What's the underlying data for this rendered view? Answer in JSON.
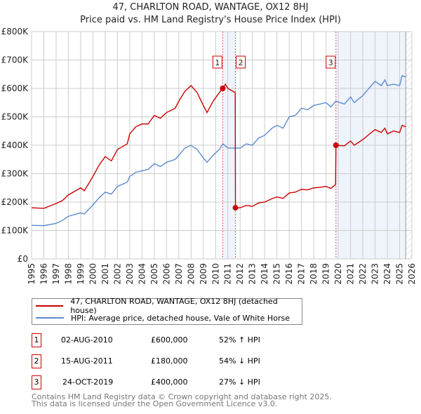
{
  "chart_data": {
    "type": "line",
    "title": "47, CHARLTON ROAD, WANTAGE, OX12 8HJ",
    "subtitle": "Price paid vs. HM Land Registry's House Price Index (HPI)",
    "xlim": [
      1995,
      2026
    ],
    "ylim": [
      0,
      800000
    ],
    "y_ticks": [
      "£0",
      "£100K",
      "£200K",
      "£300K",
      "£400K",
      "£500K",
      "£600K",
      "£700K",
      "£800K"
    ],
    "x_ticks": [
      "1995",
      "1996",
      "1997",
      "1998",
      "1999",
      "2000",
      "2001",
      "2002",
      "2003",
      "2004",
      "2005",
      "2006",
      "2007",
      "2008",
      "2009",
      "2010",
      "2011",
      "2012",
      "2013",
      "2014",
      "2015",
      "2016",
      "2017",
      "2018",
      "2019",
      "2020",
      "2021",
      "2022",
      "2023",
      "2024",
      "2025",
      "2026"
    ],
    "grid": true,
    "series": [
      {
        "name": "47, CHARLTON ROAD, WANTAGE, OX12 8HJ (detached house)",
        "color": "#cc0000",
        "x": [
          1995,
          1996,
          1997,
          1997.5,
          1998,
          1999,
          1999.3,
          2000,
          2000.5,
          2001,
          2001.5,
          2002,
          2002.8,
          2003,
          2003.5,
          2004,
          2004.5,
          2005,
          2005.5,
          2006,
          2006.7,
          2007,
          2007.5,
          2008,
          2008.5,
          2009,
          2009.3,
          2009.8,
          2010.3,
          2010.58,
          2010.8,
          2011,
          2011.6,
          2011.62,
          2012,
          2012.5,
          2013,
          2013.5,
          2014,
          2014.6,
          2015,
          2015.5,
          2016,
          2016.5,
          2017,
          2017.5,
          2018,
          2018.5,
          2019,
          2019.4,
          2019.78,
          2019.81,
          2020.5,
          2021,
          2021.3,
          2022,
          2022.5,
          2023,
          2023.5,
          2023.8,
          2024,
          2024.5,
          2025,
          2025.2,
          2025.5
        ],
        "y": [
          180,
          178,
          195,
          205,
          225,
          250,
          240,
          290,
          330,
          360,
          345,
          385,
          405,
          440,
          465,
          475,
          475,
          505,
          495,
          515,
          530,
          555,
          590,
          610,
          585,
          540,
          515,
          555,
          585,
          600,
          615,
          600,
          585,
          180,
          180,
          188,
          185,
          197,
          200,
          212,
          218,
          213,
          232,
          235,
          245,
          243,
          250,
          252,
          255,
          248,
          262,
          400,
          398,
          415,
          400,
          420,
          438,
          455,
          445,
          460,
          440,
          450,
          445,
          470,
          465
        ]
      },
      {
        "name": "HPI: Average price, detached house, Vale of White Horse",
        "color": "#5b8bd0",
        "x": [
          1995,
          1996,
          1997,
          1997.5,
          1998,
          1999,
          1999.3,
          2000,
          2000.5,
          2001,
          2001.5,
          2002,
          2002.8,
          2003,
          2003.5,
          2004,
          2004.5,
          2005,
          2005.5,
          2006,
          2006.7,
          2007,
          2007.5,
          2008,
          2008.5,
          2009,
          2009.3,
          2009.8,
          2010.3,
          2010.6,
          2011,
          2011.6,
          2012,
          2012.5,
          2013,
          2013.5,
          2014,
          2014.6,
          2015,
          2015.5,
          2016,
          2016.5,
          2017,
          2017.5,
          2018,
          2018.5,
          2019,
          2019.4,
          2019.8,
          2020.5,
          2021,
          2021.3,
          2022,
          2022.5,
          2023,
          2023.5,
          2023.8,
          2024,
          2024.5,
          2025,
          2025.2,
          2025.5
        ],
        "y": [
          118,
          117,
          125,
          135,
          150,
          162,
          158,
          190,
          215,
          235,
          228,
          255,
          270,
          290,
          305,
          310,
          315,
          335,
          325,
          340,
          350,
          365,
          390,
          400,
          385,
          355,
          340,
          365,
          385,
          405,
          390,
          390,
          390,
          405,
          400,
          425,
          435,
          460,
          470,
          460,
          500,
          505,
          530,
          525,
          540,
          545,
          550,
          535,
          555,
          545,
          570,
          550,
          575,
          600,
          625,
          610,
          630,
          610,
          615,
          610,
          645,
          640
        ]
      }
    ],
    "y_unit": "thousands GBP",
    "transactions": [
      {
        "label": "1",
        "x": 2010.58,
        "y": 600
      },
      {
        "label": "2",
        "x": 2011.62,
        "y": 180
      },
      {
        "label": "3",
        "x": 2019.81,
        "y": 400
      }
    ],
    "shaded": [
      [
        2010.58,
        2011.62
      ],
      [
        2019.81,
        2025.5
      ]
    ],
    "hatched_from": 2025.5
  },
  "legend": {
    "red": "47, CHARLTON ROAD, WANTAGE, OX12 8HJ (detached house)",
    "blue": "HPI: Average price, detached house, Vale of White Horse"
  },
  "table": [
    {
      "num": "1",
      "date": "02-AUG-2010",
      "price": "£600,000",
      "hpi": "52% ↑ HPI"
    },
    {
      "num": "2",
      "date": "15-AUG-2011",
      "price": "£180,000",
      "hpi": "54% ↓ HPI"
    },
    {
      "num": "3",
      "date": "24-OCT-2019",
      "price": "£400,000",
      "hpi": "27% ↓ HPI"
    }
  ],
  "footer": {
    "line1": "Contains HM Land Registry data © Crown copyright and database right 2025.",
    "line2": "This data is licensed under the Open Government Licence v3.0."
  }
}
